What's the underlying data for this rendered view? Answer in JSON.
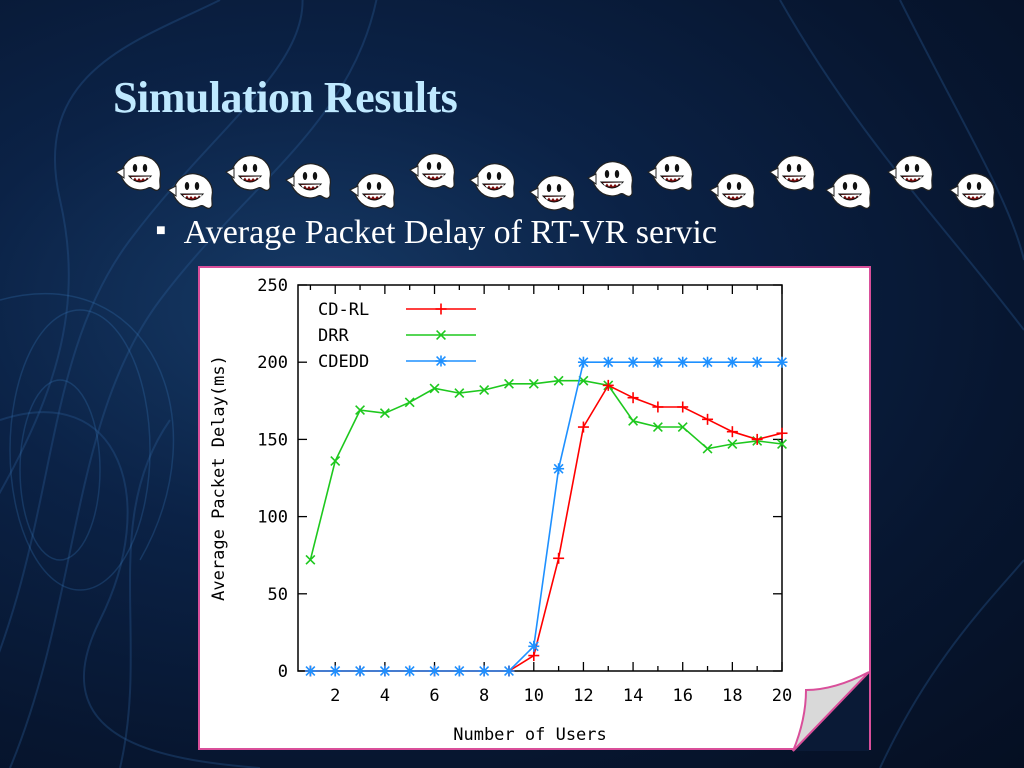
{
  "slide": {
    "title": "Simulation Results",
    "bullet": "Average Packet Delay of RT-VR servic",
    "ghost_icon": "boo-ghost-icon",
    "ghost_count": 15
  },
  "colors": {
    "title": "#bfe9ff",
    "frame_border": "#d94f9a",
    "cdrl": "#ff0000",
    "drr": "#1ec81e",
    "cdedd": "#1e90ff"
  },
  "chart_data": {
    "type": "line",
    "xlabel": "Number of Users",
    "ylabel": "Average Packet Delay(ms)",
    "xlim": [
      0.5,
      20
    ],
    "ylim": [
      0,
      250
    ],
    "xticks": [
      2,
      4,
      6,
      8,
      10,
      12,
      14,
      16,
      18,
      20
    ],
    "yticks": [
      0,
      50,
      100,
      150,
      200,
      250
    ],
    "grid": false,
    "legend": "top-left",
    "x": [
      1,
      2,
      3,
      4,
      5,
      6,
      7,
      8,
      9,
      10,
      11,
      12,
      13,
      14,
      15,
      16,
      17,
      18,
      19,
      20
    ],
    "series": [
      {
        "name": "CD-RL",
        "marker": "+",
        "values": [
          0,
          0,
          0,
          0,
          0,
          0,
          0,
          0,
          0,
          10,
          73,
          158,
          185,
          177,
          171,
          171,
          163,
          155,
          150,
          154
        ]
      },
      {
        "name": "DRR",
        "marker": "x",
        "values": [
          72,
          136,
          169,
          167,
          174,
          183,
          180,
          182,
          186,
          186,
          188,
          188,
          185,
          162,
          158,
          158,
          144,
          147,
          149,
          147
        ]
      },
      {
        "name": "CDEDD",
        "marker": "*",
        "values": [
          0,
          0,
          0,
          0,
          0,
          0,
          0,
          0,
          0,
          16,
          131,
          200,
          200,
          200,
          200,
          200,
          200,
          200,
          200,
          200
        ]
      }
    ]
  }
}
